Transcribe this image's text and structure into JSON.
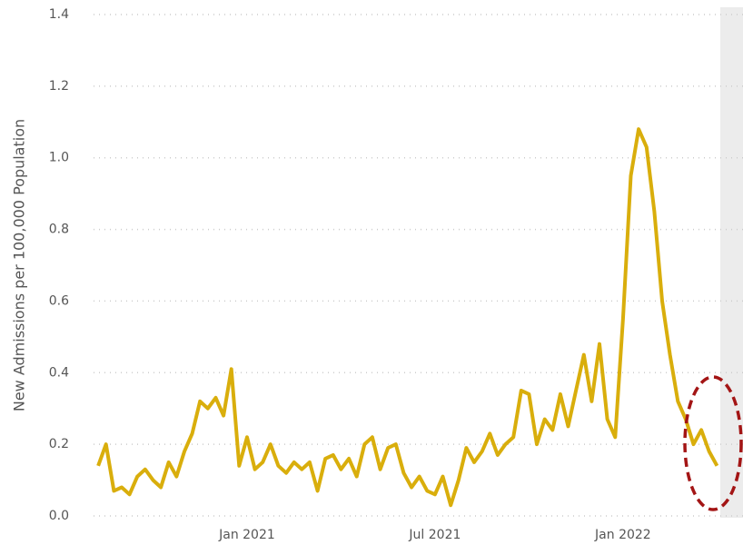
{
  "chart_data": {
    "type": "line",
    "y_label": "New Admissions per 100,000 Population",
    "x": [
      -4.75,
      -4.5,
      -4.25,
      -4,
      -3.75,
      -3.5,
      -3.25,
      -3,
      -2.75,
      -2.5,
      -2.25,
      -2,
      -1.75,
      -1.5,
      -1.25,
      -1,
      -0.75,
      -0.5,
      -0.25,
      0,
      0.25,
      0.5,
      0.75,
      1,
      1.25,
      1.5,
      1.75,
      2,
      2.25,
      2.5,
      2.75,
      3,
      3.25,
      3.5,
      3.75,
      4,
      4.25,
      4.5,
      4.75,
      5,
      5.25,
      5.5,
      5.75,
      6,
      6.25,
      6.5,
      6.75,
      7,
      7.25,
      7.5,
      7.75,
      8,
      8.25,
      8.5,
      8.75,
      9,
      9.25,
      9.5,
      9.75,
      10,
      10.25,
      10.5,
      10.75,
      11,
      11.25,
      11.5,
      11.75,
      12,
      12.25,
      12.5,
      12.75,
      13,
      13.25,
      13.5,
      13.75,
      14,
      14.25,
      14.5,
      14.75,
      15
    ],
    "series": [
      {
        "color": "#d9ae0c",
        "values": [
          0.14,
          0.2,
          0.07,
          0.08,
          0.06,
          0.11,
          0.13,
          0.1,
          0.08,
          0.15,
          0.11,
          0.18,
          0.23,
          0.32,
          0.3,
          0.33,
          0.28,
          0.41,
          0.14,
          0.22,
          0.13,
          0.15,
          0.2,
          0.14,
          0.12,
          0.15,
          0.13,
          0.15,
          0.07,
          0.16,
          0.17,
          0.13,
          0.16,
          0.11,
          0.2,
          0.22,
          0.13,
          0.19,
          0.2,
          0.12,
          0.08,
          0.11,
          0.07,
          0.06,
          0.11,
          0.03,
          0.1,
          0.19,
          0.15,
          0.18,
          0.23,
          0.17,
          0.2,
          0.22,
          0.35,
          0.34,
          0.2,
          0.27,
          0.24,
          0.34,
          0.25,
          0.35,
          0.45,
          0.32,
          0.48,
          0.27,
          0.22,
          0.55,
          0.95,
          1.08,
          1.03,
          0.85,
          0.6,
          0.45,
          0.32,
          0.27,
          0.2,
          0.24,
          0.18,
          0.14
        ]
      }
    ],
    "xlim": [
      -5.13,
      15.83
    ],
    "xticks": [
      {
        "value": 0,
        "label": "Jan 2021"
      },
      {
        "value": 6,
        "label": "Jul 2021"
      },
      {
        "value": 12,
        "label": "Jan 2022"
      }
    ],
    "ylim": [
      0,
      1.4
    ],
    "yticks": [
      {
        "value": 0,
        "label": "0.0"
      },
      0.2,
      0.4,
      0.6,
      0.8,
      {
        "value": 1,
        "label": "1.0"
      },
      1.2,
      1.4
    ],
    "grid": true
  }
}
